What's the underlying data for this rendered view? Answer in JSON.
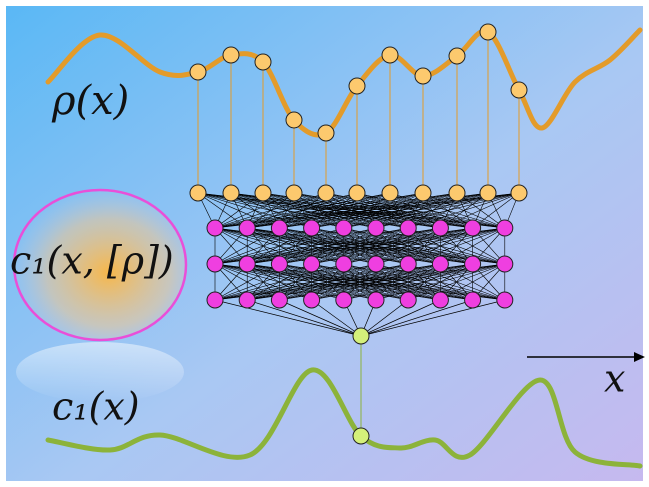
{
  "labels": {
    "rho": "ρ(x)",
    "functional": "c₁(x, [ρ])",
    "c1": "c₁(x)",
    "x_axis": "x"
  }
}
